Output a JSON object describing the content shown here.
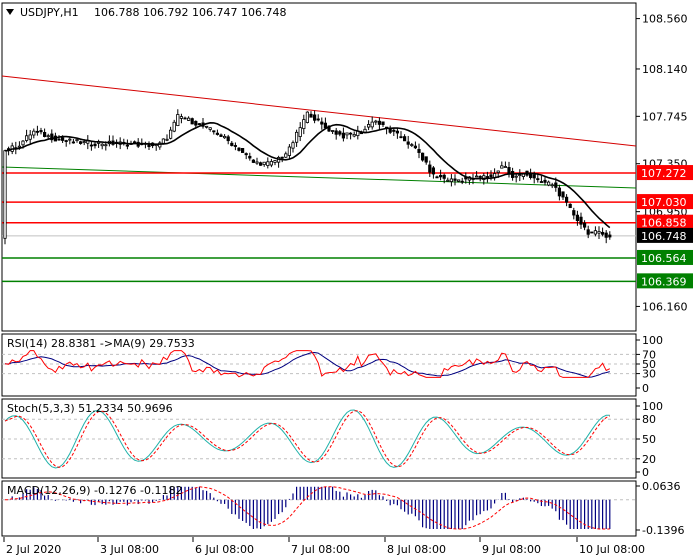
{
  "colors": {
    "background": "#ffffff",
    "frame": "#000000",
    "grid": "#c0c0c0",
    "candle": "#000000",
    "ma_line": "#000000",
    "trend_red": "#d40000",
    "trend_green": "#008000",
    "level_red": "#ff0000",
    "level_green": "#008000",
    "price_tag_bg": "#000000",
    "rsi_line": "#ff0000",
    "rsi_ma": "#000080",
    "stoch_main": "#20b2aa",
    "stoch_signal": "#ff0000",
    "macd_hist": "#000080",
    "macd_signal": "#ff0000"
  },
  "header": {
    "symbol": "USDJPY,H1",
    "ohlc": "106.788 106.792 106.747 106.748"
  },
  "main_axis": {
    "ticks": [
      "108.560",
      "108.140",
      "107.745",
      "107.350",
      "106.950",
      "106.160"
    ],
    "current_price": "106.748",
    "levels": [
      {
        "label": "107.272",
        "value": 107.272,
        "color": "red"
      },
      {
        "label": "107.030",
        "value": 107.03,
        "color": "red"
      },
      {
        "label": "106.858",
        "value": 106.858,
        "color": "red"
      },
      {
        "label": "106.564",
        "value": 106.564,
        "color": "green"
      },
      {
        "label": "106.369",
        "value": 106.369,
        "color": "green"
      }
    ],
    "ylim": [
      105.955,
      108.69
    ]
  },
  "time_axis": {
    "labels": [
      "2 Jul 2020",
      "3 Jul 08:00",
      "6 Jul 08:00",
      "7 Jul 08:00",
      "8 Jul 08:00",
      "9 Jul 08:00",
      "10 Jul 08:00"
    ]
  },
  "rsi": {
    "title": "RSI(14) 28.8381 ->MA(9) 29.7533",
    "ticks": [
      "100",
      "70",
      "50",
      "30",
      "0"
    ]
  },
  "stoch": {
    "title": "Stoch(5,3,3) 51.2334 50.9696",
    "ticks": [
      "100",
      "80",
      "50",
      "20",
      "0"
    ]
  },
  "macd": {
    "title": "MACD(12,26,9) -0.1276 -0.1182",
    "ticks": [
      "0.0636",
      "-0.1396"
    ]
  },
  "chart_data": [
    {
      "type": "candlestick",
      "title": "USDJPY,H1",
      "ylim": [
        105.955,
        108.69
      ],
      "x": [
        "2 Jul 2020",
        "3 Jul 08:00",
        "6 Jul 08:00",
        "7 Jul 08:00",
        "8 Jul 08:00",
        "9 Jul 08:00",
        "10 Jul 08:00"
      ],
      "close_path": [
        {
          "x": "2 Jul 2020",
          "y": 107.45
        },
        {
          "x": "3 Jul 08:00",
          "y": 107.52
        },
        {
          "x": "6 Jul 08:00",
          "y": 107.6
        },
        {
          "x": "7 Jul 08:00",
          "y": 107.62
        },
        {
          "x": "8 Jul 08:00",
          "y": 107.55
        },
        {
          "x": "9 Jul 08:00",
          "y": 107.28
        },
        {
          "x": "10 Jul 08:00",
          "y": 106.75
        }
      ],
      "horizontal_levels": [
        107.272,
        107.03,
        106.858,
        106.564,
        106.369
      ],
      "last": 106.748
    },
    {
      "type": "line",
      "title": "RSI(14) 28.8381 ->MA(9) 29.7533",
      "ylim": [
        0,
        100
      ],
      "last": {
        "RSI": 28.8381,
        "MA": 29.7533
      }
    },
    {
      "type": "line",
      "title": "Stoch(5,3,3) 51.2334 50.9696",
      "ylim": [
        0,
        100
      ],
      "last": {
        "main": 51.2334,
        "signal": 50.9696
      }
    },
    {
      "type": "bar",
      "title": "MACD(12,26,9) -0.1276 -0.1182",
      "ylim": [
        -0.1396,
        0.0636
      ],
      "last": {
        "MACD": -0.1276,
        "signal": -0.1182
      }
    }
  ]
}
